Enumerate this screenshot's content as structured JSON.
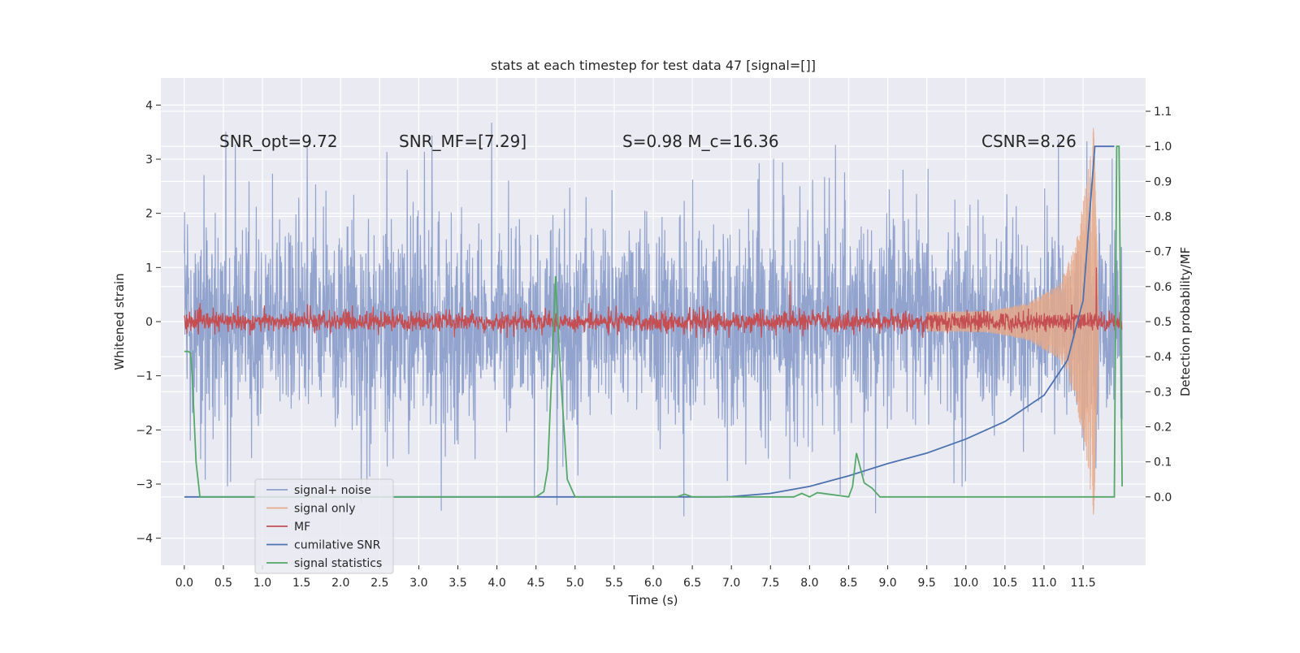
{
  "chart_data": {
    "type": "line",
    "title": "stats at each timestep for test data 47 [signal=[]]",
    "xlabel": "Time (s)",
    "ylabel_left": "Whitened strain",
    "ylabel_right": "Detection probability/MF",
    "xlim": [
      -0.3,
      12.3
    ],
    "ylim_left": [
      -4.5,
      4.5
    ],
    "ylim_right": [
      -0.195,
      1.195
    ],
    "x_ticks": [
      "0.0",
      "0.5",
      "1.0",
      "1.5",
      "2.0",
      "2.5",
      "3.0",
      "3.5",
      "4.0",
      "4.5",
      "5.0",
      "5.5",
      "6.0",
      "6.5",
      "7.0",
      "7.5",
      "8.0",
      "8.5",
      "9.0",
      "9.5",
      "10.0",
      "10.5",
      "11.0",
      "11.5"
    ],
    "y_ticks_left": [
      "4",
      "3",
      "2",
      "1",
      "0",
      "−1",
      "−2",
      "−3",
      "−4"
    ],
    "y_ticks_right": [
      "1.1",
      "1.0",
      "0.9",
      "0.8",
      "0.7",
      "0.6",
      "0.5",
      "0.4",
      "0.3",
      "0.2",
      "0.1",
      "0.0"
    ],
    "grid": true,
    "legend_position": "lower-left",
    "annotations": [
      {
        "text": "SNR_opt=9.72"
      },
      {
        "text": "SNR_MF=[7.29]"
      },
      {
        "text": "S=0.98   M_c=16.36"
      },
      {
        "text": "CSNR=8.26"
      }
    ],
    "series": [
      {
        "name": "signal+ noise",
        "color": "#8da0cb",
        "axis": "left",
        "style": "noise, amplitude ~ ±2 with spikes to about ±4, 0.0–12.0 s"
      },
      {
        "name": "signal only",
        "color": "#e5a98a",
        "axis": "left",
        "style": "chirp growing from ~10.3 s to peak ±3.8 at 11.65 s",
        "x": [
          10.3,
          10.8,
          11.2,
          11.4,
          11.55,
          11.65,
          11.7
        ],
        "y_envelope": [
          0.2,
          0.35,
          0.7,
          1.4,
          2.6,
          3.8,
          0.0
        ]
      },
      {
        "name": "MF",
        "color": "#c44e52",
        "axis": "left",
        "style": "noise amplitude ~ ±0.3, spike 0.75 at 7.75 s, 1.0 at 11.67 s"
      },
      {
        "name": "cumilative SNR",
        "color": "#4c72b0",
        "axis": "right",
        "x": [
          0.0,
          4.0,
          5.0,
          6.0,
          6.8,
          7.0,
          7.5,
          8.0,
          8.5,
          9.0,
          9.5,
          10.0,
          10.5,
          11.0,
          11.3,
          11.5,
          11.65,
          11.7,
          11.9
        ],
        "y": [
          0.0,
          0.0,
          0.0,
          0.0,
          0.0,
          0.001,
          0.01,
          0.03,
          0.06,
          0.095,
          0.125,
          0.165,
          0.215,
          0.29,
          0.39,
          0.56,
          1.0,
          1.0,
          1.0
        ]
      },
      {
        "name": "signal statistics",
        "color": "#55a868",
        "axis": "right",
        "x": [
          0.0,
          0.05,
          0.08,
          0.1,
          0.15,
          0.2,
          4.5,
          4.6,
          4.65,
          4.7,
          4.75,
          4.8,
          4.9,
          5.0,
          6.3,
          6.4,
          6.5,
          7.8,
          7.9,
          8.0,
          8.1,
          8.5,
          8.55,
          8.6,
          8.7,
          8.8,
          8.9,
          9.0,
          11.9,
          11.93,
          11.96,
          12.0
        ],
        "y": [
          0.415,
          0.415,
          0.41,
          0.35,
          0.1,
          0.0,
          0.0,
          0.015,
          0.08,
          0.35,
          0.63,
          0.4,
          0.05,
          0.0,
          0.0,
          0.008,
          0.0,
          0.0,
          0.01,
          0.0,
          0.012,
          0.0,
          0.03,
          0.125,
          0.04,
          0.025,
          0.0,
          0.0,
          0.0,
          1.0,
          1.0,
          0.03
        ]
      }
    ]
  }
}
